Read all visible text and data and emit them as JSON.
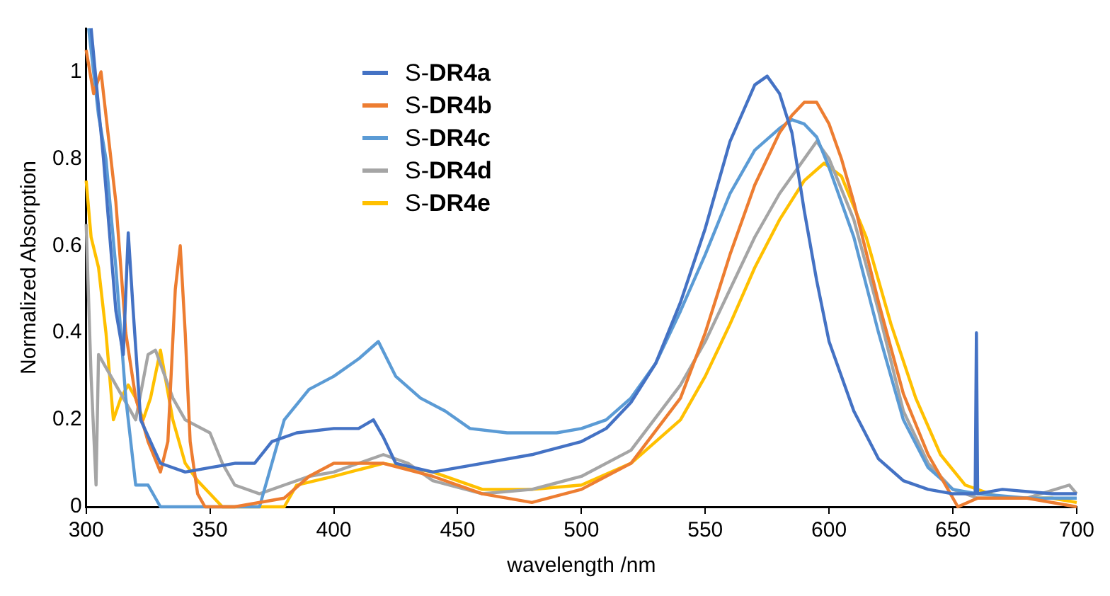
{
  "chart_data": {
    "type": "line",
    "xlabel": "wavelength /nm",
    "ylabel": "Normalized Absorption",
    "xlim": [
      300,
      700
    ],
    "xticks": [
      300,
      350,
      400,
      450,
      500,
      550,
      600,
      650,
      700
    ],
    "ylim": [
      0,
      1.1
    ],
    "yticks": [
      0,
      0.2,
      0.4,
      0.6,
      0.8,
      1
    ],
    "grid": false,
    "legend": "top",
    "marker": "none",
    "line_style": "solid",
    "series": [
      {
        "name": "S-DR4a",
        "color": "#4472c4",
        "x": [
          302,
          307,
          312,
          315,
          317,
          319,
          322,
          330,
          340,
          350,
          360,
          368,
          375,
          385,
          400,
          410,
          416,
          420,
          425,
          440,
          460,
          480,
          500,
          510,
          520,
          530,
          540,
          550,
          560,
          570,
          575,
          580,
          585,
          590,
          595,
          600,
          610,
          620,
          630,
          640,
          650,
          659,
          659.5,
          660,
          670,
          690,
          700
        ],
        "values": [
          1.1,
          0.8,
          0.45,
          0.35,
          0.63,
          0.45,
          0.2,
          0.1,
          0.08,
          0.09,
          0.1,
          0.1,
          0.15,
          0.17,
          0.18,
          0.18,
          0.2,
          0.16,
          0.1,
          0.08,
          0.1,
          0.12,
          0.15,
          0.18,
          0.24,
          0.33,
          0.47,
          0.64,
          0.84,
          0.97,
          0.99,
          0.95,
          0.86,
          0.68,
          0.52,
          0.38,
          0.22,
          0.11,
          0.06,
          0.04,
          0.03,
          0.03,
          0.4,
          0.03,
          0.04,
          0.03,
          0.03
        ]
      },
      {
        "name": "S-DR4b",
        "color": "#ed7d31",
        "x": [
          300,
          303,
          306,
          308,
          312,
          316,
          320,
          325,
          330,
          333,
          336,
          338,
          340,
          342,
          345,
          348,
          360,
          380,
          390,
          400,
          420,
          440,
          460,
          480,
          500,
          520,
          540,
          550,
          560,
          570,
          580,
          585,
          590,
          595,
          600,
          605,
          610,
          620,
          630,
          640,
          648,
          652,
          660,
          680,
          700
        ],
        "values": [
          1.05,
          0.95,
          1.0,
          0.9,
          0.7,
          0.4,
          0.25,
          0.15,
          0.08,
          0.15,
          0.5,
          0.6,
          0.4,
          0.15,
          0.03,
          0,
          0,
          0.02,
          0.07,
          0.1,
          0.1,
          0.07,
          0.03,
          0.01,
          0.04,
          0.1,
          0.25,
          0.4,
          0.58,
          0.74,
          0.86,
          0.9,
          0.93,
          0.93,
          0.88,
          0.8,
          0.7,
          0.47,
          0.26,
          0.12,
          0.04,
          0,
          0.02,
          0.02,
          0
        ]
      },
      {
        "name": "S-DR4c",
        "color": "#5b9bd5",
        "x": [
          301,
          305,
          308,
          312,
          316,
          320,
          325,
          330,
          340,
          350,
          370,
          375,
          380,
          390,
          400,
          410,
          418,
          425,
          435,
          445,
          455,
          470,
          490,
          500,
          510,
          520,
          530,
          540,
          550,
          560,
          570,
          580,
          585,
          590,
          595,
          600,
          610,
          620,
          630,
          640,
          650,
          660,
          680,
          700
        ],
        "values": [
          1.1,
          0.9,
          0.8,
          0.55,
          0.25,
          0.05,
          0.05,
          0,
          0,
          0,
          0,
          0.1,
          0.2,
          0.27,
          0.3,
          0.34,
          0.38,
          0.3,
          0.25,
          0.22,
          0.18,
          0.17,
          0.17,
          0.18,
          0.2,
          0.25,
          0.33,
          0.45,
          0.58,
          0.72,
          0.82,
          0.87,
          0.89,
          0.88,
          0.85,
          0.78,
          0.62,
          0.4,
          0.2,
          0.09,
          0.04,
          0.03,
          0.02,
          0.02
        ]
      },
      {
        "name": "S-DR4d",
        "color": "#a5a5a5",
        "x": [
          300,
          302,
          304,
          305,
          310,
          315,
          320,
          325,
          328,
          335,
          340,
          350,
          355,
          360,
          370,
          380,
          390,
          400,
          410,
          420,
          430,
          440,
          460,
          480,
          500,
          520,
          540,
          550,
          560,
          570,
          580,
          590,
          595,
          600,
          610,
          620,
          630,
          640,
          650,
          660,
          680,
          697,
          700
        ],
        "values": [
          0.65,
          0.3,
          0.05,
          0.35,
          0.3,
          0.25,
          0.2,
          0.35,
          0.36,
          0.25,
          0.2,
          0.17,
          0.1,
          0.05,
          0.03,
          0.05,
          0.07,
          0.08,
          0.1,
          0.12,
          0.1,
          0.06,
          0.03,
          0.04,
          0.07,
          0.13,
          0.28,
          0.38,
          0.5,
          0.62,
          0.72,
          0.8,
          0.84,
          0.8,
          0.66,
          0.45,
          0.22,
          0.1,
          0.04,
          0.02,
          0.02,
          0.05,
          0.03
        ]
      },
      {
        "name": "S-DR4e",
        "color": "#ffc000",
        "x": [
          300,
          302,
          305,
          308,
          311,
          314,
          317,
          320,
          323,
          326,
          330,
          335,
          340,
          345,
          350,
          355,
          380,
          385,
          400,
          420,
          440,
          460,
          480,
          500,
          520,
          540,
          550,
          560,
          570,
          580,
          590,
          598,
          605,
          615,
          625,
          635,
          645,
          655,
          670,
          690,
          700
        ],
        "values": [
          0.75,
          0.62,
          0.55,
          0.4,
          0.2,
          0.25,
          0.28,
          0.25,
          0.2,
          0.25,
          0.36,
          0.2,
          0.1,
          0.06,
          0.03,
          0,
          0,
          0.05,
          0.07,
          0.1,
          0.08,
          0.04,
          0.04,
          0.05,
          0.1,
          0.2,
          0.3,
          0.42,
          0.55,
          0.66,
          0.75,
          0.79,
          0.76,
          0.62,
          0.42,
          0.25,
          0.12,
          0.05,
          0.02,
          0.02,
          0.01
        ]
      }
    ]
  }
}
